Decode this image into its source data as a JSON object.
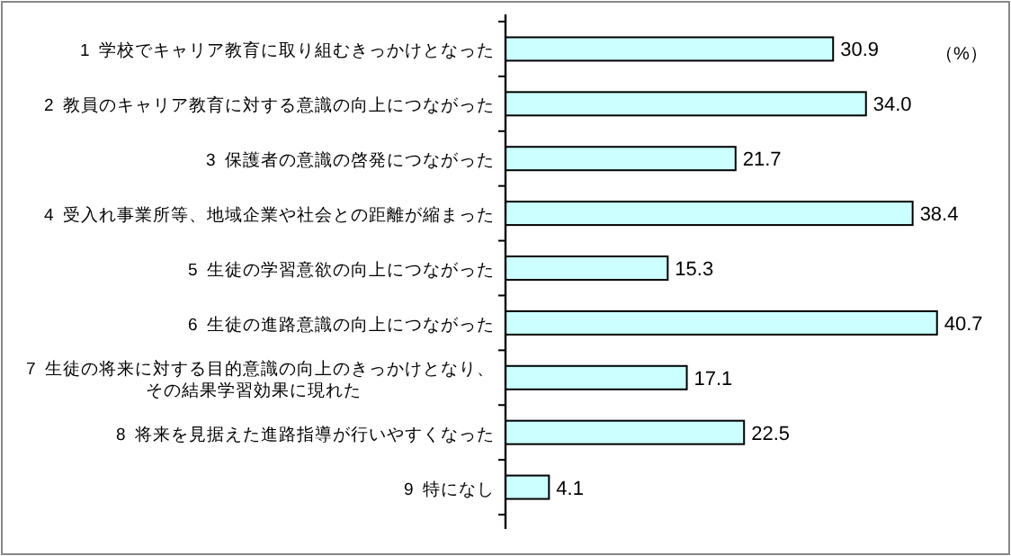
{
  "chart_data": {
    "type": "bar",
    "orientation": "horizontal",
    "categories": [
      "1  学校でキャリア教育に取り組むきっかけとなった",
      "2  教員のキャリア教育に対する意識の向上につながった",
      "3  保護者の意識の啓発につながった",
      "4  受入れ事業所等、地域企業や社会との距離が縮まった",
      "5  生徒の学習意欲の向上につながった",
      "6  生徒の進路意識の向上につながった",
      "7  生徒の将来に対する目的意識の向上のきっかけとなり、その結果学習効果に現れた",
      "8  将来を見据えた進路指導が行いやすくなった",
      "9  特になし"
    ],
    "values": [
      30.9,
      34.0,
      21.7,
      38.4,
      15.3,
      40.7,
      17.1,
      22.5,
      4.1
    ],
    "color": "#ccffff",
    "xlim": [
      0,
      47
    ],
    "value_labels": [
      "30.9",
      "34.0",
      "21.7",
      "38.4",
      "15.3",
      "40.7",
      "17.1",
      "22.5",
      "4.1"
    ],
    "annotations": [
      "（%）"
    ]
  }
}
